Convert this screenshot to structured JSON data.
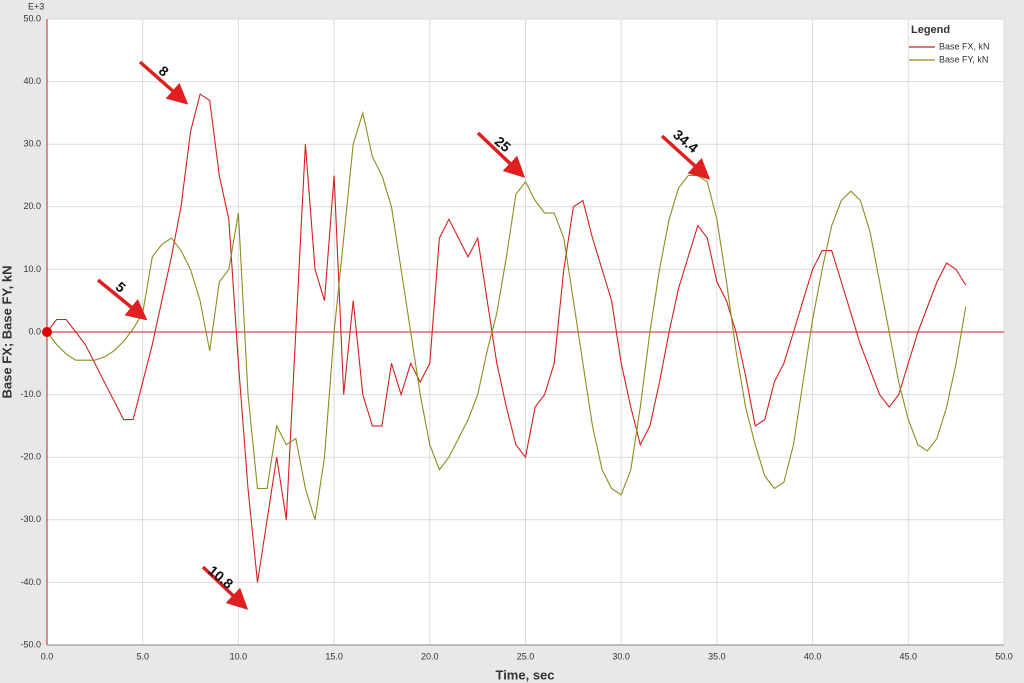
{
  "chart_data": {
    "type": "line",
    "xlabel": "Time,  sec",
    "ylabel": "Base FX; Base FY,  kN",
    "y_multiplier": "E+3",
    "legend_title": "Legend",
    "legend": "upper right",
    "grid": true,
    "xlim": [
      0,
      50
    ],
    "ylim": [
      -50,
      50
    ],
    "xticks": [
      {
        "value": 0,
        "label": "0.0"
      },
      {
        "value": 5,
        "label": "5.0"
      },
      {
        "value": 10,
        "label": "10.0"
      },
      {
        "value": 15,
        "label": "15.0"
      },
      {
        "value": 20,
        "label": "20.0"
      },
      {
        "value": 25,
        "label": "25.0"
      },
      {
        "value": 30,
        "label": "30.0"
      },
      {
        "value": 35,
        "label": "35.0"
      },
      {
        "value": 40,
        "label": "40.0"
      },
      {
        "value": 45,
        "label": "45.0"
      },
      {
        "value": 50,
        "label": "50.0"
      }
    ],
    "yticks": [
      {
        "value": -50,
        "label": "-50.0"
      },
      {
        "value": -40,
        "label": "-40.0"
      },
      {
        "value": -30,
        "label": "-30.0"
      },
      {
        "value": -20,
        "label": "-20.0"
      },
      {
        "value": -10,
        "label": "-10.0"
      },
      {
        "value": 0,
        "label": "0.0"
      },
      {
        "value": 10,
        "label": "10.0"
      },
      {
        "value": 20,
        "label": "20.0"
      },
      {
        "value": 30,
        "label": "30.0"
      },
      {
        "value": 40,
        "label": "40.0"
      },
      {
        "value": 50,
        "label": "50.0"
      }
    ],
    "x": [
      0,
      0.5,
      1,
      1.5,
      2,
      2.5,
      3,
      3.5,
      4,
      4.5,
      5,
      5.5,
      6,
      6.5,
      7,
      7.5,
      8,
      8.5,
      9,
      9.5,
      10,
      10.5,
      11,
      11.5,
      12,
      12.5,
      13,
      13.5,
      14,
      14.5,
      15,
      15.5,
      16,
      16.5,
      17,
      17.5,
      18,
      18.5,
      19,
      19.5,
      20,
      20.5,
      21,
      21.5,
      22,
      22.5,
      23,
      23.5,
      24,
      24.5,
      25,
      25.5,
      26,
      26.5,
      27,
      27.5,
      28,
      28.5,
      29,
      29.5,
      30,
      30.5,
      31,
      31.5,
      32,
      32.5,
      33,
      33.5,
      34,
      34.5,
      35,
      35.5,
      36,
      36.5,
      37,
      37.5,
      38,
      38.5,
      39,
      39.5,
      40,
      40.5,
      41,
      41.5,
      42,
      42.5,
      43,
      43.5,
      44,
      44.5,
      45,
      45.5,
      46,
      46.5,
      47,
      47.5,
      48
    ],
    "series": [
      {
        "name": "Base FX, kN",
        "color": "#d42020",
        "values": [
          0,
          2,
          2,
          0,
          -2,
          -5,
          -8,
          -11,
          -14,
          -14,
          -8,
          -2,
          5,
          12,
          20,
          32,
          38,
          37,
          25,
          18,
          -5,
          -25,
          -40,
          -30,
          -20,
          -30,
          0,
          30,
          10,
          5,
          25,
          -10,
          5,
          -10,
          -15,
          -15,
          -5,
          -10,
          -5,
          -8,
          -5,
          15,
          18,
          15,
          12,
          15,
          5,
          -5,
          -12,
          -18,
          -20,
          -12,
          -10,
          -5,
          10,
          20,
          21,
          15,
          10,
          5,
          -5,
          -12,
          -18,
          -15,
          -8,
          0,
          7,
          12,
          17,
          15,
          8,
          5,
          0,
          -7,
          -15,
          -14,
          -8,
          -5,
          0,
          5,
          10,
          13,
          13,
          8,
          3,
          -2,
          -6,
          -10,
          -12,
          -10,
          -5,
          0,
          4,
          8,
          11,
          10,
          7.5
        ]
      },
      {
        "name": "Base FY, kN",
        "color": "#8c8c1e",
        "values": [
          0,
          -2,
          -3.5,
          -4.5,
          -4.5,
          -4.5,
          -4,
          -3,
          -1.5,
          0.5,
          3,
          12,
          14,
          15,
          13,
          10,
          5,
          -3,
          8,
          10,
          19,
          -10,
          -25,
          -25,
          -15,
          -18,
          -17,
          -25,
          -30,
          -20,
          0,
          15,
          30,
          35,
          28,
          25,
          20,
          10,
          0,
          -10,
          -18,
          -22,
          -20,
          -17,
          -14,
          -10,
          -3,
          3,
          12,
          22,
          24,
          21,
          19,
          19,
          15,
          5,
          -5,
          -15,
          -22,
          -25,
          -26,
          -22,
          -12,
          0,
          10,
          18,
          23,
          25,
          25,
          24,
          18,
          8,
          -3,
          -12,
          -18,
          -23,
          -25,
          -24,
          -18,
          -8,
          2,
          10,
          17,
          21,
          22.5,
          21,
          16,
          8,
          0,
          -8,
          -14,
          -18,
          -19,
          -17,
          -12,
          -5,
          4
        ]
      }
    ],
    "annotations": [
      "8",
      "5",
      "10.8",
      "25",
      "34.4"
    ]
  }
}
